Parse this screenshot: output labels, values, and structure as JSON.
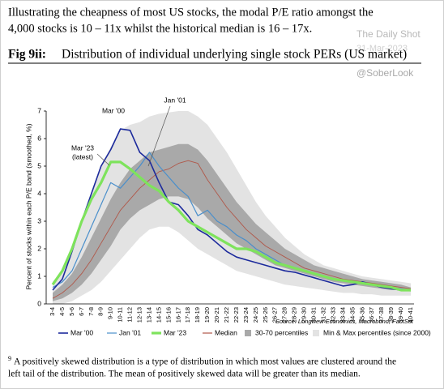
{
  "header": {
    "lines": [
      "Illustrating the cheapness of most US stocks, the modal P/E ratio amongst the",
      "4,000 stocks is 10 – 11x whilst the historical median is 16 – 17x."
    ],
    "watermark": "The Daily Shot",
    "date": "31-Mar-2023",
    "handle": "@SoberLook",
    "fig_label": "Fig 9ii:",
    "fig_title": "Distribution of individual underlying single stock PERs (US market)"
  },
  "chart_data": {
    "type": "line",
    "ylabel": "Percent of stocks within each P/E band (smoothed, %)",
    "source": "Source: Longview Economics, Macrobond, FactSet",
    "annotations": [
      "Mar '00",
      "Jan '01",
      "Mar '23",
      "(latest)"
    ],
    "categories": [
      "3-4",
      "4-5",
      "5-6",
      "6-7",
      "7-8",
      "8-9",
      "9-10",
      "10-11",
      "11-12",
      "12-13",
      "13-14",
      "14-15",
      "15-16",
      "16-17",
      "17-18",
      "18-19",
      "19-20",
      "20-21",
      "21-22",
      "22-23",
      "23-24",
      "24-25",
      "25-26",
      "26-27",
      "27-28",
      "28-29",
      "29-30",
      "30-31",
      "31-32",
      "32-33",
      "33-34",
      "34-35",
      "35-36",
      "36-37",
      "37-38",
      "38-39",
      "39-40",
      "40-41"
    ],
    "ylim": [
      0,
      7
    ],
    "yticks": [
      0,
      1,
      2,
      3,
      4,
      5,
      6,
      7
    ],
    "bands": [
      {
        "name": "Min & Max percentiles (since 2000)",
        "color": "#e3e3e3",
        "low": [
          0,
          0,
          0.1,
          0.3,
          0.5,
          0.8,
          1.2,
          1.6,
          2.0,
          2.4,
          2.7,
          2.8,
          2.8,
          2.6,
          2.3,
          2.0,
          1.8,
          1.6,
          1.4,
          1.2,
          1.1,
          1.0,
          0.9,
          0.8,
          0.7,
          0.65,
          0.6,
          0.55,
          0.5,
          0.45,
          0.4,
          0.4,
          0.35,
          0.35,
          0.3,
          0.3,
          0.3,
          0.3
        ],
        "high": [
          0.8,
          1.2,
          2.0,
          3.0,
          4.0,
          5.0,
          5.7,
          6.3,
          6.5,
          6.6,
          6.8,
          6.9,
          6.95,
          7.0,
          7.0,
          6.8,
          6.5,
          6.0,
          5.5,
          4.9,
          4.3,
          3.7,
          3.2,
          2.8,
          2.4,
          2.1,
          1.8,
          1.6,
          1.4,
          1.3,
          1.2,
          1.1,
          1.0,
          0.95,
          0.9,
          0.85,
          0.8,
          0.75
        ]
      },
      {
        "name": "30-70 percentiles",
        "color": "#a9a9a9",
        "low": [
          0.1,
          0.2,
          0.4,
          0.7,
          1.1,
          1.6,
          2.1,
          2.7,
          3.1,
          3.4,
          3.6,
          3.8,
          3.9,
          3.9,
          3.8,
          3.5,
          3.1,
          2.8,
          2.5,
          2.2,
          2.0,
          1.8,
          1.6,
          1.4,
          1.3,
          1.2,
          1.1,
          1.0,
          0.9,
          0.8,
          0.75,
          0.7,
          0.65,
          0.6,
          0.55,
          0.5,
          0.5,
          0.45
        ],
        "high": [
          0.4,
          0.7,
          1.1,
          1.7,
          2.4,
          3.1,
          3.8,
          4.4,
          4.9,
          5.2,
          5.5,
          5.6,
          5.7,
          5.8,
          5.8,
          5.6,
          5.2,
          4.7,
          4.2,
          3.7,
          3.3,
          2.9,
          2.6,
          2.3,
          2.0,
          1.8,
          1.6,
          1.4,
          1.3,
          1.2,
          1.1,
          1.0,
          0.9,
          0.85,
          0.8,
          0.75,
          0.7,
          0.6
        ]
      }
    ],
    "series": [
      {
        "name": "Mar '00",
        "color": "#1c2a9c",
        "width": 1.6,
        "values": [
          0.5,
          0.9,
          1.9,
          3.0,
          4.0,
          5.0,
          5.6,
          6.35,
          6.3,
          5.5,
          5.2,
          4.4,
          3.7,
          3.6,
          3.2,
          2.7,
          2.5,
          2.2,
          1.9,
          1.7,
          1.6,
          1.5,
          1.4,
          1.3,
          1.2,
          1.15,
          1.05,
          0.95,
          0.85,
          0.75,
          0.65,
          0.7,
          0.8,
          0.7,
          0.6,
          0.55,
          0.5,
          0.5
        ]
      },
      {
        "name": "Jan '01",
        "color": "#4a8fcb",
        "width": 1.2,
        "values": [
          0.6,
          0.8,
          1.2,
          2.0,
          2.8,
          3.6,
          4.4,
          4.2,
          4.6,
          5.0,
          5.5,
          5.0,
          4.6,
          4.2,
          3.9,
          3.2,
          3.4,
          3.0,
          2.8,
          2.5,
          2.3,
          2.0,
          1.8,
          1.6,
          1.4,
          1.3,
          1.2,
          1.1,
          1.0,
          0.9,
          0.85,
          0.8,
          0.75,
          0.7,
          0.65,
          0.6,
          0.55,
          0.5
        ]
      },
      {
        "name": "Mar '23",
        "color": "#7ee35c",
        "width": 3.2,
        "values": [
          0.7,
          1.2,
          2.0,
          3.0,
          3.8,
          4.4,
          5.15,
          5.15,
          4.9,
          4.6,
          4.3,
          4.1,
          3.7,
          3.4,
          3.0,
          2.8,
          2.6,
          2.4,
          2.2,
          2.0,
          2.0,
          1.9,
          1.7,
          1.5,
          1.4,
          1.3,
          1.2,
          1.1,
          1.0,
          0.9,
          0.85,
          0.8,
          0.75,
          0.7,
          0.65,
          0.6,
          0.5,
          0.5
        ]
      },
      {
        "name": "Median",
        "color": "#b0584a",
        "width": 0.9,
        "values": [
          0.2,
          0.4,
          0.7,
          1.1,
          1.6,
          2.2,
          2.8,
          3.4,
          3.8,
          4.2,
          4.5,
          4.8,
          4.9,
          5.1,
          5.2,
          5.1,
          4.5,
          4.0,
          3.5,
          3.1,
          2.7,
          2.4,
          2.1,
          1.9,
          1.7,
          1.5,
          1.3,
          1.2,
          1.1,
          1.0,
          0.9,
          0.85,
          0.8,
          0.75,
          0.7,
          0.65,
          0.6,
          0.55
        ]
      }
    ]
  },
  "footnote": {
    "marker": "9",
    "lines": [
      "A positively skewed distribution is a type of distribution in which most values are clustered around the",
      "left tail of the distribution. The mean of positively skewed data will be greater than its median."
    ]
  }
}
